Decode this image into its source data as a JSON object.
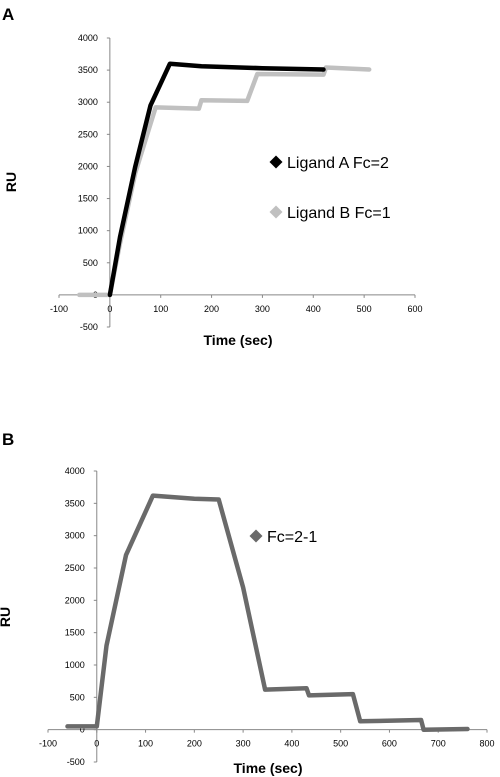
{
  "chart_data": [
    {
      "panel_label": "A",
      "type": "line",
      "xlabel": "Time (sec)",
      "ylabel": "RU",
      "xlim": [
        -100,
        600
      ],
      "ylim": [
        -500,
        4000
      ],
      "xticks": [
        "-100",
        "0",
        "100",
        "200",
        "300",
        "400",
        "500",
        "600"
      ],
      "yticks": [
        "4000",
        "3500",
        "3000",
        "2500",
        "2000",
        "1500",
        "1000",
        "500",
        "0",
        "-500"
      ],
      "grid": false,
      "legend_position": "right",
      "series": [
        {
          "name": "Ligand A Fc=2",
          "color": "#000000",
          "points": [
            [
              0,
              0
            ],
            [
              20,
              900
            ],
            [
              50,
              2000
            ],
            [
              80,
              2950
            ],
            [
              118,
              3600
            ],
            [
              180,
              3560
            ],
            [
              300,
              3530
            ],
            [
              420,
              3510
            ]
          ]
        },
        {
          "name": "Ligand B Fc=1",
          "color": "#c0c0c0",
          "points": [
            [
              -60,
              0
            ],
            [
              0,
              0
            ],
            [
              20,
              800
            ],
            [
              50,
              1900
            ],
            [
              90,
              2920
            ],
            [
              175,
              2900
            ],
            [
              180,
              3030
            ],
            [
              270,
              3020
            ],
            [
              290,
              3440
            ],
            [
              420,
              3430
            ],
            [
              425,
              3540
            ],
            [
              510,
              3510
            ]
          ]
        }
      ]
    },
    {
      "panel_label": "B",
      "type": "line",
      "xlabel": "Time (sec)",
      "ylabel": "RU",
      "xlim": [
        -100,
        800
      ],
      "ylim": [
        -500,
        4000
      ],
      "xticks": [
        "-100",
        "0",
        "100",
        "200",
        "300",
        "400",
        "500",
        "600",
        "700",
        "800"
      ],
      "yticks": [
        "4000",
        "3500",
        "3000",
        "2500",
        "2000",
        "1500",
        "1000",
        "500",
        "0",
        "-500"
      ],
      "grid": false,
      "legend_position": "right",
      "series": [
        {
          "name": "Fc=2-1",
          "color": "#6a6a6a",
          "points": [
            [
              -60,
              50
            ],
            [
              0,
              50
            ],
            [
              20,
              1300
            ],
            [
              60,
              2700
            ],
            [
              115,
              3620
            ],
            [
              200,
              3570
            ],
            [
              250,
              3560
            ],
            [
              300,
              2200
            ],
            [
              345,
              620
            ],
            [
              430,
              640
            ],
            [
              435,
              530
            ],
            [
              525,
              550
            ],
            [
              540,
              130
            ],
            [
              665,
              150
            ],
            [
              670,
              0
            ],
            [
              760,
              10
            ]
          ]
        }
      ]
    }
  ]
}
